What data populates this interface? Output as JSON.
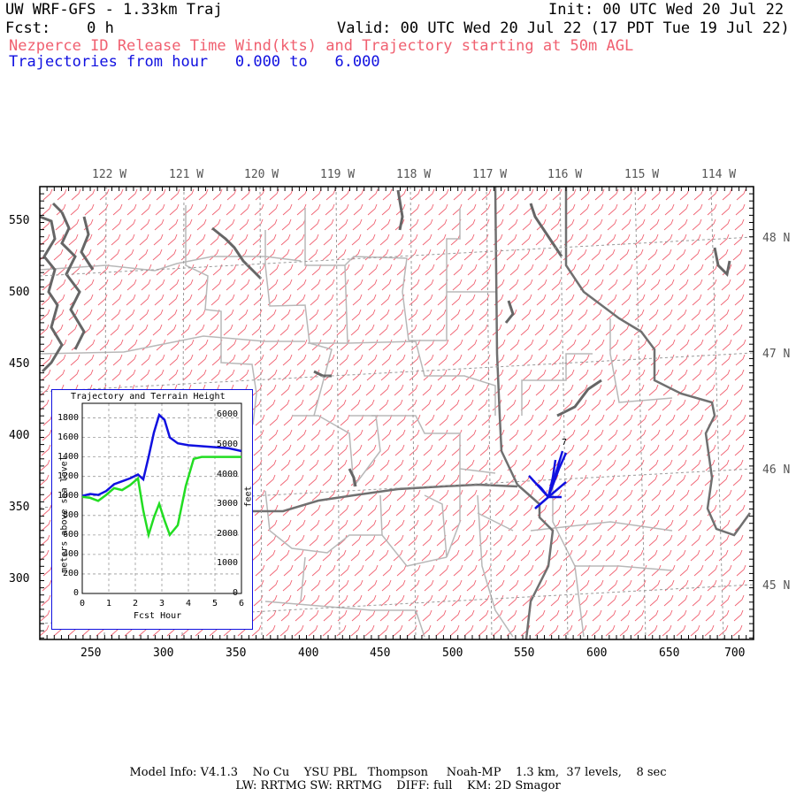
{
  "header": {
    "line1_left": "UW WRF-GFS - 1.33km Traj",
    "line1_right": "Init: 00 UTC Wed 20 Jul 22",
    "line2_left": "Fcst:    0 h",
    "line2_right": "Valid: 00 UTC Wed 20 Jul 22 (17 PDT Tue 19 Jul 22)",
    "line3": "Nezperce ID Release Time Wind(kts) and Trajectory starting at 50m AGL",
    "line4": "Trajectories from hour   0.000 to   6.000"
  },
  "longitudes": [
    "122 W",
    "121 W",
    "120 W",
    "119 W",
    "118 W",
    "117 W",
    "116 W",
    "115 W",
    "114 W"
  ],
  "latitudes": [
    "48 N",
    "47 N",
    "46 N",
    "45 N"
  ],
  "y_grid_labels": [
    "550",
    "500",
    "450",
    "400",
    "350",
    "300"
  ],
  "x_grid_labels": [
    "250",
    "300",
    "350",
    "400",
    "450",
    "500",
    "550",
    "600",
    "650",
    "700"
  ],
  "trajectory_marker": "7",
  "inset": {
    "title": "Trajectory and Terrain Height",
    "ylabel_left": "meters above sea level",
    "ylabel_right": "feet",
    "xlabel": "Fcst Hour",
    "left_ticks": [
      "1800",
      "1600",
      "1400",
      "1200",
      "1000",
      "800",
      "600",
      "400",
      "200",
      "0"
    ],
    "right_ticks": [
      "6000",
      "5000",
      "4000",
      "3000",
      "2000",
      "1000",
      "0"
    ],
    "x_ticks": [
      "0",
      "1",
      "2",
      "3",
      "4",
      "5",
      "6"
    ]
  },
  "chart_data": {
    "type": "line",
    "title": "Trajectory and Terrain Height",
    "xlabel": "Fcst Hour",
    "ylabel": "meters above sea level",
    "xlim": [
      0,
      6
    ],
    "ylim": [
      0,
      1950
    ],
    "grid": true,
    "series": [
      {
        "color": "#1010e0",
        "x": [
          0,
          0.3,
          0.6,
          0.9,
          1.2,
          1.5,
          1.8,
          2.1,
          2.3,
          2.5,
          2.7,
          2.9,
          3.1,
          3.3,
          3.6,
          4.0,
          4.5,
          5.0,
          5.5,
          6.0
        ],
        "y": [
          1000,
          1020,
          1010,
          1050,
          1120,
          1150,
          1180,
          1220,
          1170,
          1400,
          1650,
          1830,
          1780,
          1600,
          1540,
          1520,
          1510,
          1500,
          1490,
          1460
        ]
      },
      {
        "color": "#22dd22",
        "x": [
          0,
          0.3,
          0.6,
          0.9,
          1.2,
          1.5,
          1.8,
          2.1,
          2.3,
          2.5,
          2.7,
          2.9,
          3.1,
          3.3,
          3.6,
          3.9,
          4.2,
          4.5,
          5.0,
          5.5,
          6.0
        ],
        "y": [
          990,
          980,
          950,
          1010,
          1080,
          1060,
          1110,
          1180,
          850,
          600,
          780,
          920,
          750,
          600,
          700,
          1100,
          1380,
          1400,
          1400,
          1400,
          1400
        ]
      }
    ]
  },
  "footer": {
    "line1": "Model Info: V4.1.3    No Cu    YSU PBL   Thompson     Noah-MP    1.3 km,  37 levels,    8 sec",
    "line2": "LW: RRTMG SW: RRTMG    DIFF: full    KM: 2D Smagor"
  }
}
